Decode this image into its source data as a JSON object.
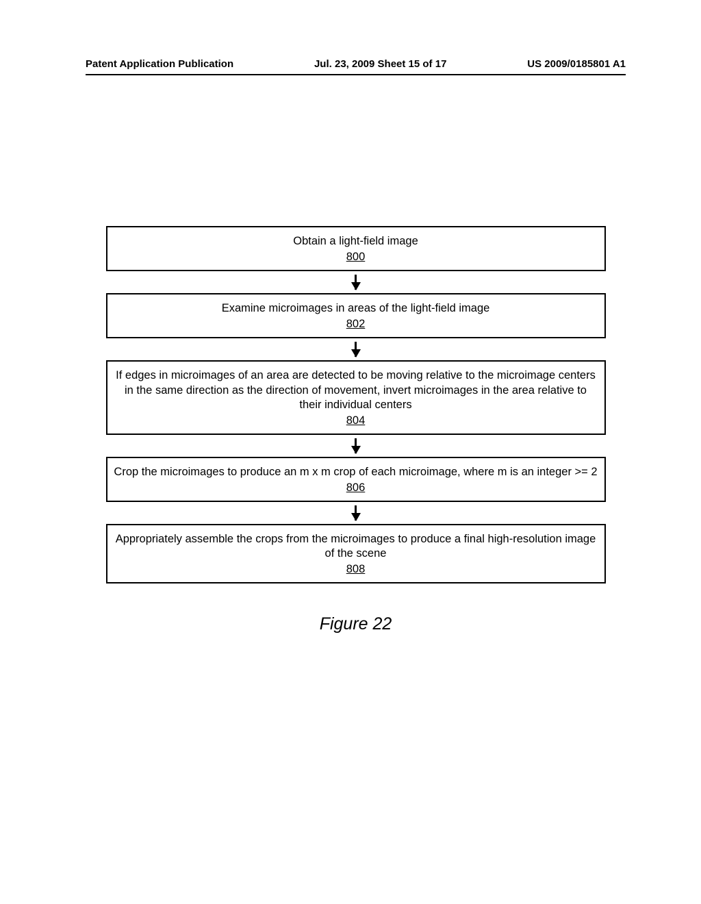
{
  "header": {
    "left": "Patent Application Publication",
    "center": "Jul. 23, 2009  Sheet 15 of 17",
    "right": "US 2009/0185801 A1"
  },
  "flowchart": {
    "type": "flowchart",
    "box_border_color": "#000000",
    "box_border_width": 2.5,
    "background_color": "#ffffff",
    "text_color": "#000000",
    "font_size": 16.5,
    "arrow_color": "#000000",
    "arrow_length": 22,
    "arrow_head_size": 12,
    "boxes": [
      {
        "text": "Obtain a light-field image",
        "num": "800"
      },
      {
        "text": "Examine microimages in areas of the light-field image",
        "num": "802"
      },
      {
        "text": "If edges in microimages of an area are detected to be moving relative to the microimage centers in the same direction as the direction of movement, invert microimages in the area relative to their individual centers",
        "num": "804"
      },
      {
        "text": "Crop the microimages to produce an m x m crop of each microimage, where m is an integer >= 2",
        "num": "806"
      },
      {
        "text": "Appropriately assemble the crops from the microimages to produce a final high-resolution image of the scene",
        "num": "808"
      }
    ]
  },
  "figure_label": "Figure 22"
}
